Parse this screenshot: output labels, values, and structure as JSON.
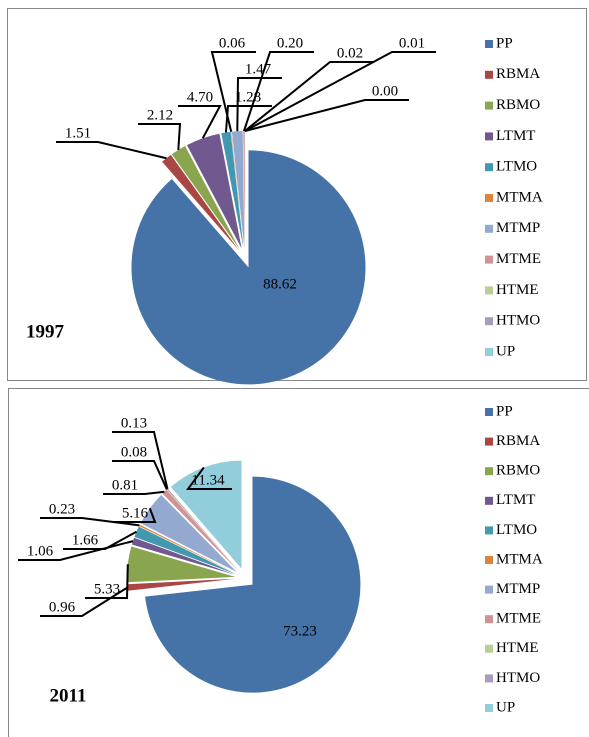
{
  "chart_data": [
    {
      "type": "pie",
      "title": "1997",
      "categories": [
        "PP",
        "RBMA",
        "RBMO",
        "LTMT",
        "LTMO",
        "MTMA",
        "MTMP",
        "MTME",
        "HTME",
        "HTMO",
        "UP"
      ],
      "values": [
        88.62,
        1.51,
        2.12,
        4.7,
        1.28,
        0.06,
        1.47,
        0.2,
        0.02,
        0.01,
        0
      ],
      "value_labels": [
        "88.62",
        "1.51",
        "2.12",
        "4.70",
        "1.28",
        "0.06",
        "1.47",
        "0.20",
        "0.02",
        "0.01",
        "0.00"
      ],
      "colors": [
        "#4572a7",
        "#aa4643",
        "#89a54e",
        "#71588f",
        "#4198af",
        "#db843d",
        "#93a9cf",
        "#d19392",
        "#b9cd96",
        "#a99bbd",
        "#92cddc"
      ]
    },
    {
      "type": "pie",
      "title": "2011",
      "categories": [
        "PP",
        "RBMA",
        "RBMO",
        "LTMT",
        "LTMO",
        "MTMA",
        "MTMP",
        "MTME",
        "HTME",
        "HTMO",
        "UP"
      ],
      "values": [
        73.23,
        0.96,
        5.33,
        1.06,
        1.66,
        0.23,
        5.16,
        0.81,
        0.08,
        0.13,
        11.34
      ],
      "value_labels": [
        "73.23",
        "0.96",
        "5.33",
        "1.06",
        "1.66",
        "0.23",
        "5.16",
        "0.81",
        "0.08",
        "0.13",
        "11.34"
      ],
      "colors": [
        "#4572a7",
        "#aa4643",
        "#89a54e",
        "#71588f",
        "#4198af",
        "#db843d",
        "#93a9cf",
        "#d19392",
        "#b9cd96",
        "#a99bbd",
        "#92cddc"
      ]
    }
  ]
}
